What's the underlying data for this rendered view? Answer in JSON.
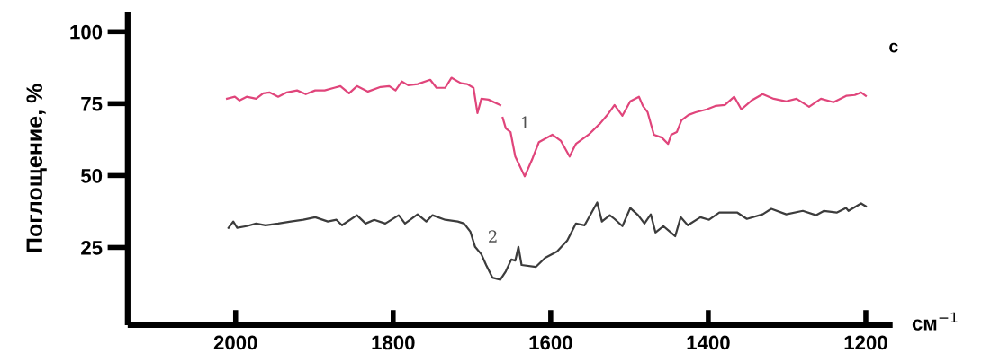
{
  "chart_data": {
    "type": "line",
    "ylabel": "Поглощение, %",
    "xlabel": "см$^{−1}$",
    "xlim": [
      2137,
      1166
    ],
    "xticks": [
      2000,
      1800,
      1600,
      1400,
      1200
    ],
    "ylim": [
      -2,
      107
    ],
    "yticks": [
      25,
      50,
      75,
      100
    ],
    "line_style": "solid",
    "annotations": [
      {
        "text": "1",
        "x": 1661,
        "y": 70.1
      },
      {
        "text": "2",
        "x": 1702,
        "y": 30.5
      },
      "c"
    ],
    "series": [
      {
        "color": "#e0457b",
        "x": [
          2011,
          2001,
          1995,
          1986,
          1974,
          1965,
          1957,
          1946,
          1935,
          1922,
          1911,
          1899,
          1887,
          1875,
          1867,
          1856,
          1846,
          1832,
          1816,
          1805,
          1797,
          1789,
          1781,
          1769,
          1753,
          1745,
          1734,
          1726,
          1714,
          1706,
          1698,
          1693,
          1688,
          1679,
          1664,
          1662,
          1661,
          1657,
          1651,
          1645,
          1633,
          1623,
          1615,
          1598,
          1587,
          1576,
          1571,
          1568,
          1552,
          1537,
          1528,
          1519,
          1509,
          1499,
          1488,
          1483,
          1477,
          1469,
          1459,
          1451,
          1447,
          1440,
          1434,
          1425,
          1416,
          1402,
          1391,
          1379,
          1367,
          1358,
          1345,
          1331,
          1317,
          1301,
          1288,
          1272,
          1257,
          1241,
          1225,
          1214,
          1206,
          1200
        ],
        "values": [
          76.7,
          77.4,
          76.1,
          77.4,
          76.7,
          78.6,
          78.9,
          77.4,
          78.9,
          79.6,
          78.3,
          79.6,
          79.6,
          80.5,
          81.1,
          78.6,
          81.1,
          79.2,
          80.8,
          81.1,
          79.6,
          82.7,
          81.4,
          81.8,
          83.3,
          80.5,
          80.5,
          84.0,
          82.1,
          81.8,
          80.5,
          71.7,
          76.7,
          76.4,
          74.5,
          null,
          70.1,
          66.4,
          65.1,
          56.6,
          49.7,
          56.0,
          61.6,
          64.2,
          62.0,
          56.6,
          59.4,
          61.0,
          64.2,
          68.2,
          71.1,
          74.5,
          70.8,
          75.8,
          77.4,
          74.2,
          72.0,
          64.2,
          63.2,
          61.0,
          64.2,
          65.1,
          69.2,
          71.1,
          72.0,
          73.0,
          74.2,
          74.5,
          77.4,
          73.0,
          76.1,
          78.3,
          76.7,
          75.8,
          76.7,
          73.9,
          76.7,
          75.5,
          77.7,
          78.0,
          78.9,
          77.7
        ]
      },
      {
        "color": "#3c3c3c",
        "x": [
          2009,
          2003,
          1998,
          1986,
          1974,
          1962,
          1946,
          1930,
          1914,
          1899,
          1883,
          1872,
          1865,
          1846,
          1835,
          1824,
          1810,
          1793,
          1785,
          1769,
          1758,
          1750,
          1734,
          1718,
          1710,
          1702,
          1696,
          1688,
          1682,
          1674,
          1664,
          1657,
          1650,
          1645,
          1641,
          1637,
          1619,
          1607,
          1592,
          1579,
          1568,
          1557,
          1541,
          1535,
          1525,
          1519,
          1509,
          1499,
          1489,
          1481,
          1473,
          1467,
          1457,
          1442,
          1435,
          1426,
          1410,
          1399,
          1386,
          1363,
          1351,
          1331,
          1320,
          1301,
          1280,
          1263,
          1253,
          1237,
          1225,
          1222,
          1206,
          1200
        ],
        "values": [
          31.8,
          34.0,
          31.8,
          32.4,
          33.3,
          32.7,
          33.3,
          34.0,
          34.6,
          35.5,
          34.0,
          34.6,
          32.7,
          36.2,
          33.3,
          34.6,
          33.3,
          36.2,
          33.3,
          36.5,
          34.0,
          36.2,
          34.6,
          34.0,
          33.3,
          30.5,
          25.2,
          22.6,
          18.9,
          14.5,
          13.8,
          16.7,
          20.8,
          20.4,
          25.2,
          18.9,
          18.2,
          21.4,
          23.6,
          27.4,
          33.3,
          32.7,
          40.6,
          34.0,
          36.2,
          34.9,
          32.4,
          38.7,
          36.2,
          33.3,
          36.5,
          30.2,
          32.4,
          28.9,
          35.5,
          32.7,
          35.5,
          34.6,
          37.1,
          37.1,
          34.9,
          36.5,
          38.4,
          36.5,
          37.7,
          36.2,
          37.7,
          37.1,
          38.7,
          37.7,
          40.3,
          39.3
        ]
      }
    ]
  }
}
